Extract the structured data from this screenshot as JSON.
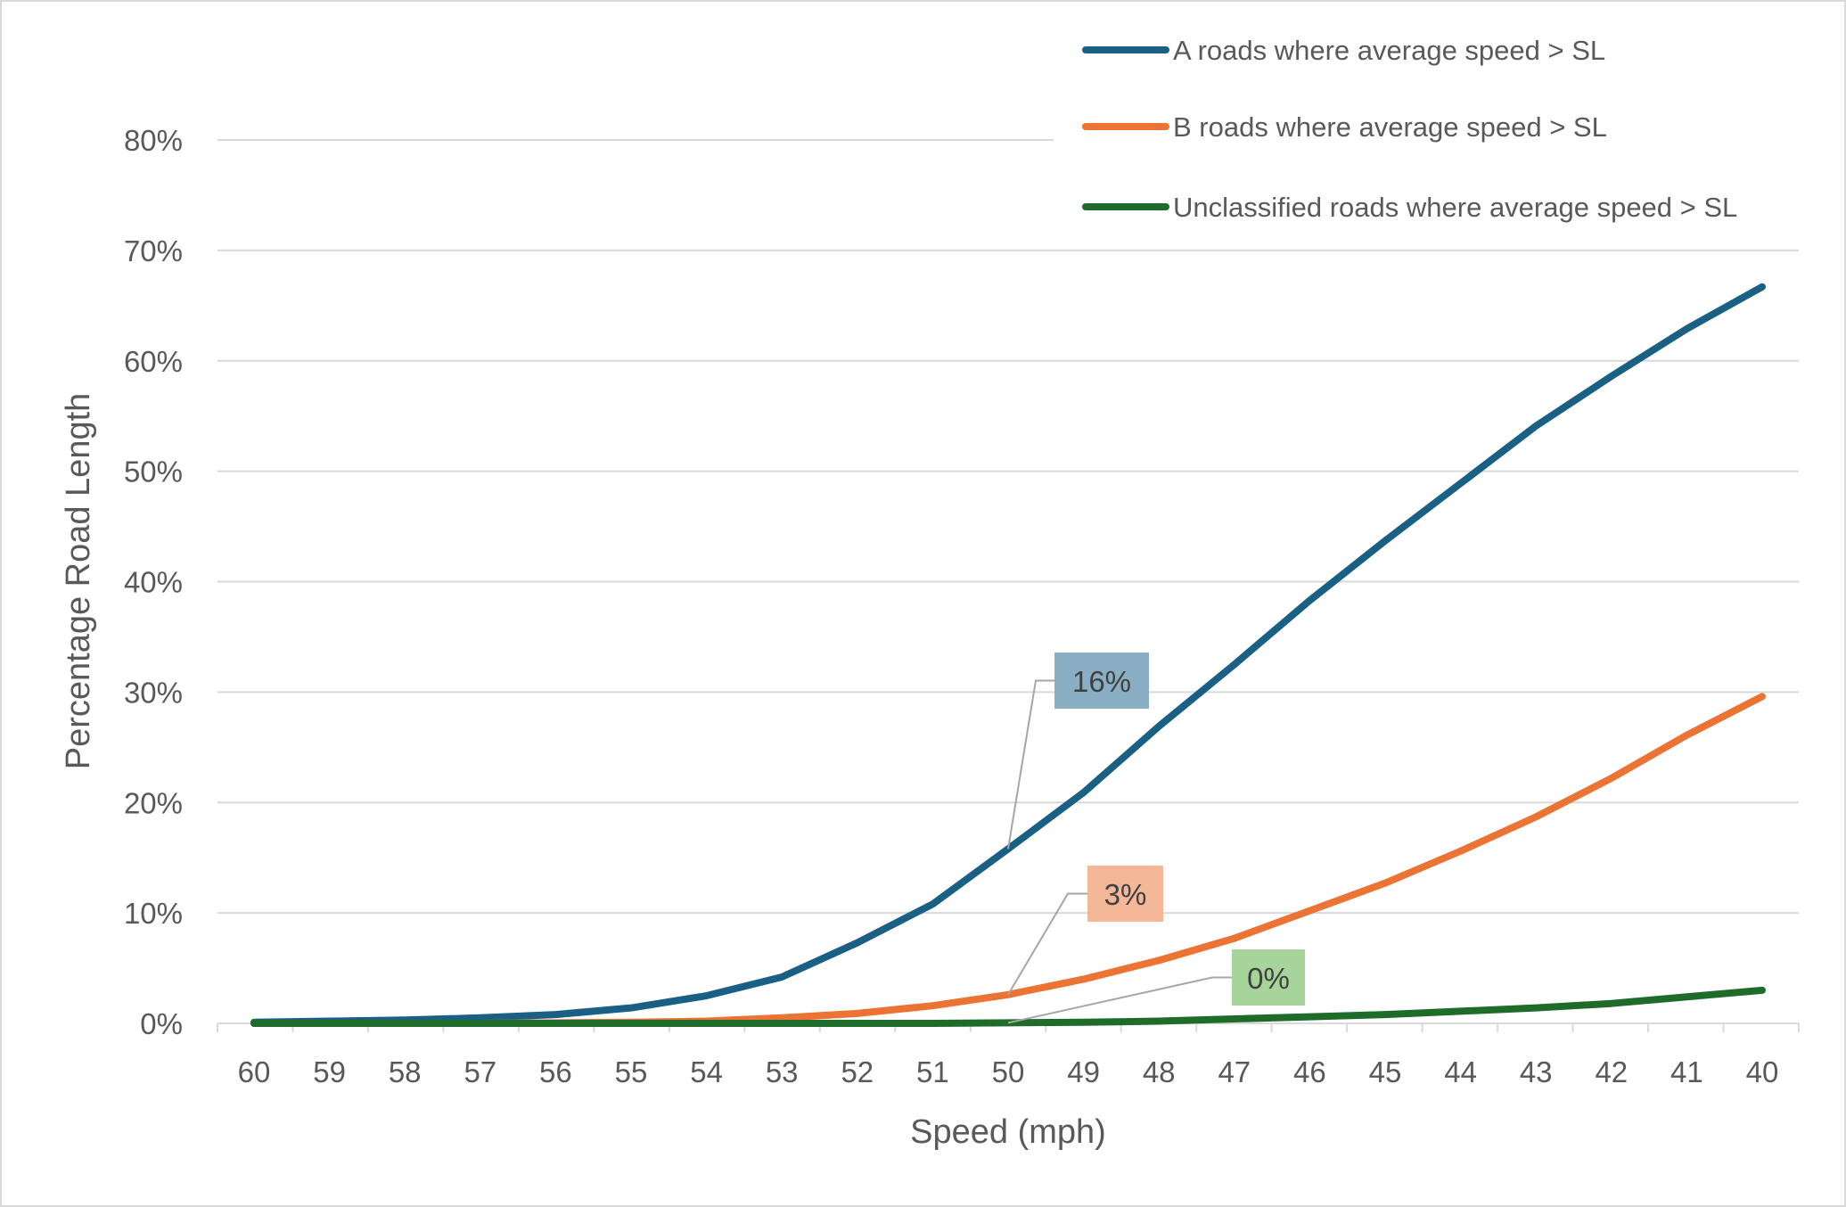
{
  "chart_data": {
    "type": "line",
    "xlabel": "Speed (mph)",
    "ylabel": "Percentage Road Length",
    "categories": [
      "60",
      "59",
      "58",
      "57",
      "56",
      "55",
      "54",
      "53",
      "52",
      "51",
      "50",
      "49",
      "48",
      "47",
      "46",
      "45",
      "44",
      "43",
      "42",
      "41",
      "40"
    ],
    "ylim": [
      0,
      80
    ],
    "yticks": [
      "0%",
      "10%",
      "20%",
      "30%",
      "40%",
      "50%",
      "60%",
      "70%",
      "80%"
    ],
    "grid": true,
    "legend_position": "top-right",
    "series": [
      {
        "name": "A roads where average speed > SL",
        "color": "#1a6085",
        "values": [
          0.1,
          0.2,
          0.3,
          0.5,
          0.8,
          1.4,
          2.5,
          4.2,
          7.3,
          10.8,
          15.8,
          20.9,
          26.9,
          32.5,
          38.3,
          43.7,
          48.9,
          54.1,
          58.6,
          62.9,
          66.7
        ]
      },
      {
        "name": "B roads where average speed > SL",
        "color": "#eb7333",
        "values": [
          0,
          0,
          0,
          0,
          0.05,
          0.1,
          0.2,
          0.5,
          0.9,
          1.6,
          2.6,
          4.0,
          5.7,
          7.7,
          10.2,
          12.7,
          15.6,
          18.7,
          22.2,
          26.1,
          29.6
        ]
      },
      {
        "name": "Unclassified roads where average speed > SL",
        "color": "#1e6b2a",
        "values": [
          0,
          0,
          0,
          0,
          0,
          0,
          0,
          0,
          0,
          0,
          0.05,
          0.1,
          0.2,
          0.4,
          0.6,
          0.8,
          1.1,
          1.4,
          1.8,
          2.4,
          3.0
        ]
      }
    ],
    "annotations": [
      {
        "series": 0,
        "x": "50",
        "label": "16%",
        "bg": "#8aafc4"
      },
      {
        "series": 1,
        "x": "50",
        "label": "3%",
        "bg": "#f4b797"
      },
      {
        "series": 2,
        "x": "50",
        "label": "0%",
        "bg": "#a6d49a"
      }
    ]
  }
}
